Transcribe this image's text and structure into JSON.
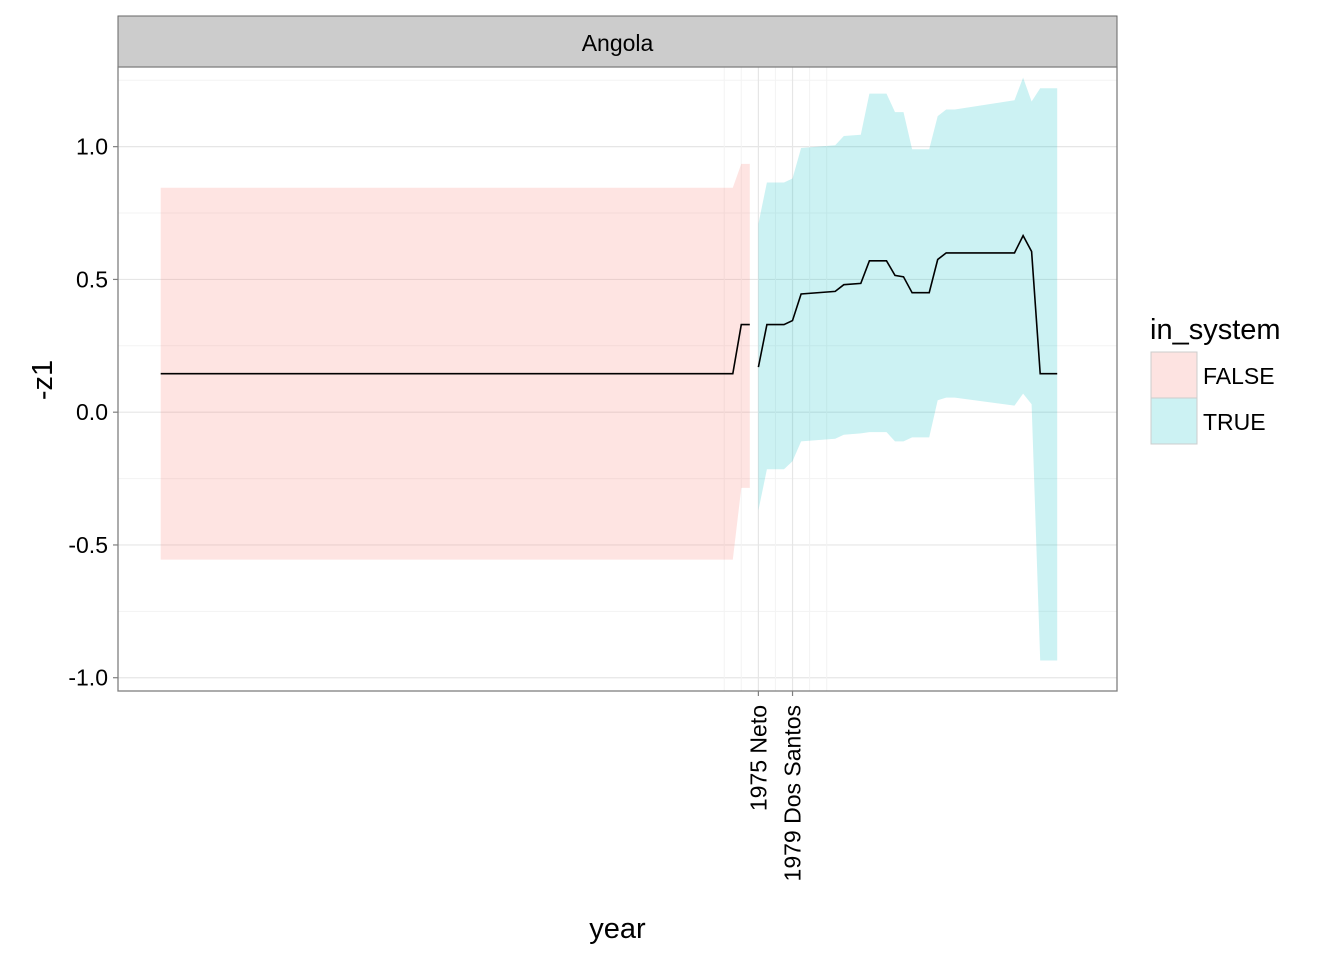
{
  "chart_data": {
    "type": "area",
    "facet": "Angola",
    "xlabel": "year",
    "ylabel": "-z1",
    "ylim": [
      -1.05,
      1.3
    ],
    "yticks": [
      1.0,
      0.5,
      0.0,
      -0.5,
      -1.0
    ],
    "ytick_labels": [
      "1.0",
      "0.5",
      "0.0",
      "-0.5",
      "-1.0"
    ],
    "xlim": [
      1900,
      2017
    ],
    "xticks": [
      {
        "year": 1975,
        "label": "1975 Neto"
      },
      {
        "year": 1979,
        "label": "1979 Dos Santos"
      }
    ],
    "x_minor_grid": [
      1971,
      1973,
      1977,
      1981,
      1983
    ],
    "grid": true,
    "legend": {
      "title": "in_system",
      "position": "right",
      "entries": [
        {
          "label": "FALSE",
          "color": "#F8766D"
        },
        {
          "label": "TRUE",
          "color": "#00BFC4"
        }
      ]
    },
    "ribbon_alpha": 0.2,
    "line_color": "#000000",
    "series": [
      {
        "name": "FALSE",
        "color": "#F8766D",
        "x": [
          1905,
          1972,
          1973,
          1974
        ],
        "y": [
          0.145,
          0.145,
          0.33,
          0.33
        ],
        "ymin": [
          -0.555,
          -0.555,
          -0.285,
          -0.285
        ],
        "ymax": [
          0.845,
          0.845,
          0.935,
          0.935
        ]
      },
      {
        "name": "TRUE",
        "color": "#00BFC4",
        "x": [
          1975,
          1976,
          1978,
          1979,
          1980,
          1984,
          1985,
          1987,
          1988,
          1990,
          1991,
          1992,
          1993,
          1995,
          1996,
          1997,
          1998,
          2005,
          2006,
          2007,
          2008,
          2010
        ],
        "y": [
          0.17,
          0.33,
          0.33,
          0.345,
          0.445,
          0.455,
          0.48,
          0.485,
          0.57,
          0.57,
          0.515,
          0.51,
          0.45,
          0.45,
          0.575,
          0.6,
          0.6,
          0.6,
          0.665,
          0.605,
          0.145,
          0.145
        ],
        "ymin": [
          -0.37,
          -0.215,
          -0.215,
          -0.185,
          -0.11,
          -0.1,
          -0.085,
          -0.08,
          -0.075,
          -0.075,
          -0.11,
          -0.11,
          -0.095,
          -0.095,
          0.045,
          0.055,
          0.055,
          0.025,
          0.07,
          0.03,
          -0.935,
          -0.935
        ],
        "ymax": [
          0.71,
          0.865,
          0.865,
          0.88,
          0.995,
          1.005,
          1.04,
          1.045,
          1.2,
          1.2,
          1.13,
          1.13,
          0.99,
          0.99,
          1.115,
          1.14,
          1.14,
          1.175,
          1.26,
          1.17,
          1.22,
          1.22
        ]
      }
    ]
  }
}
